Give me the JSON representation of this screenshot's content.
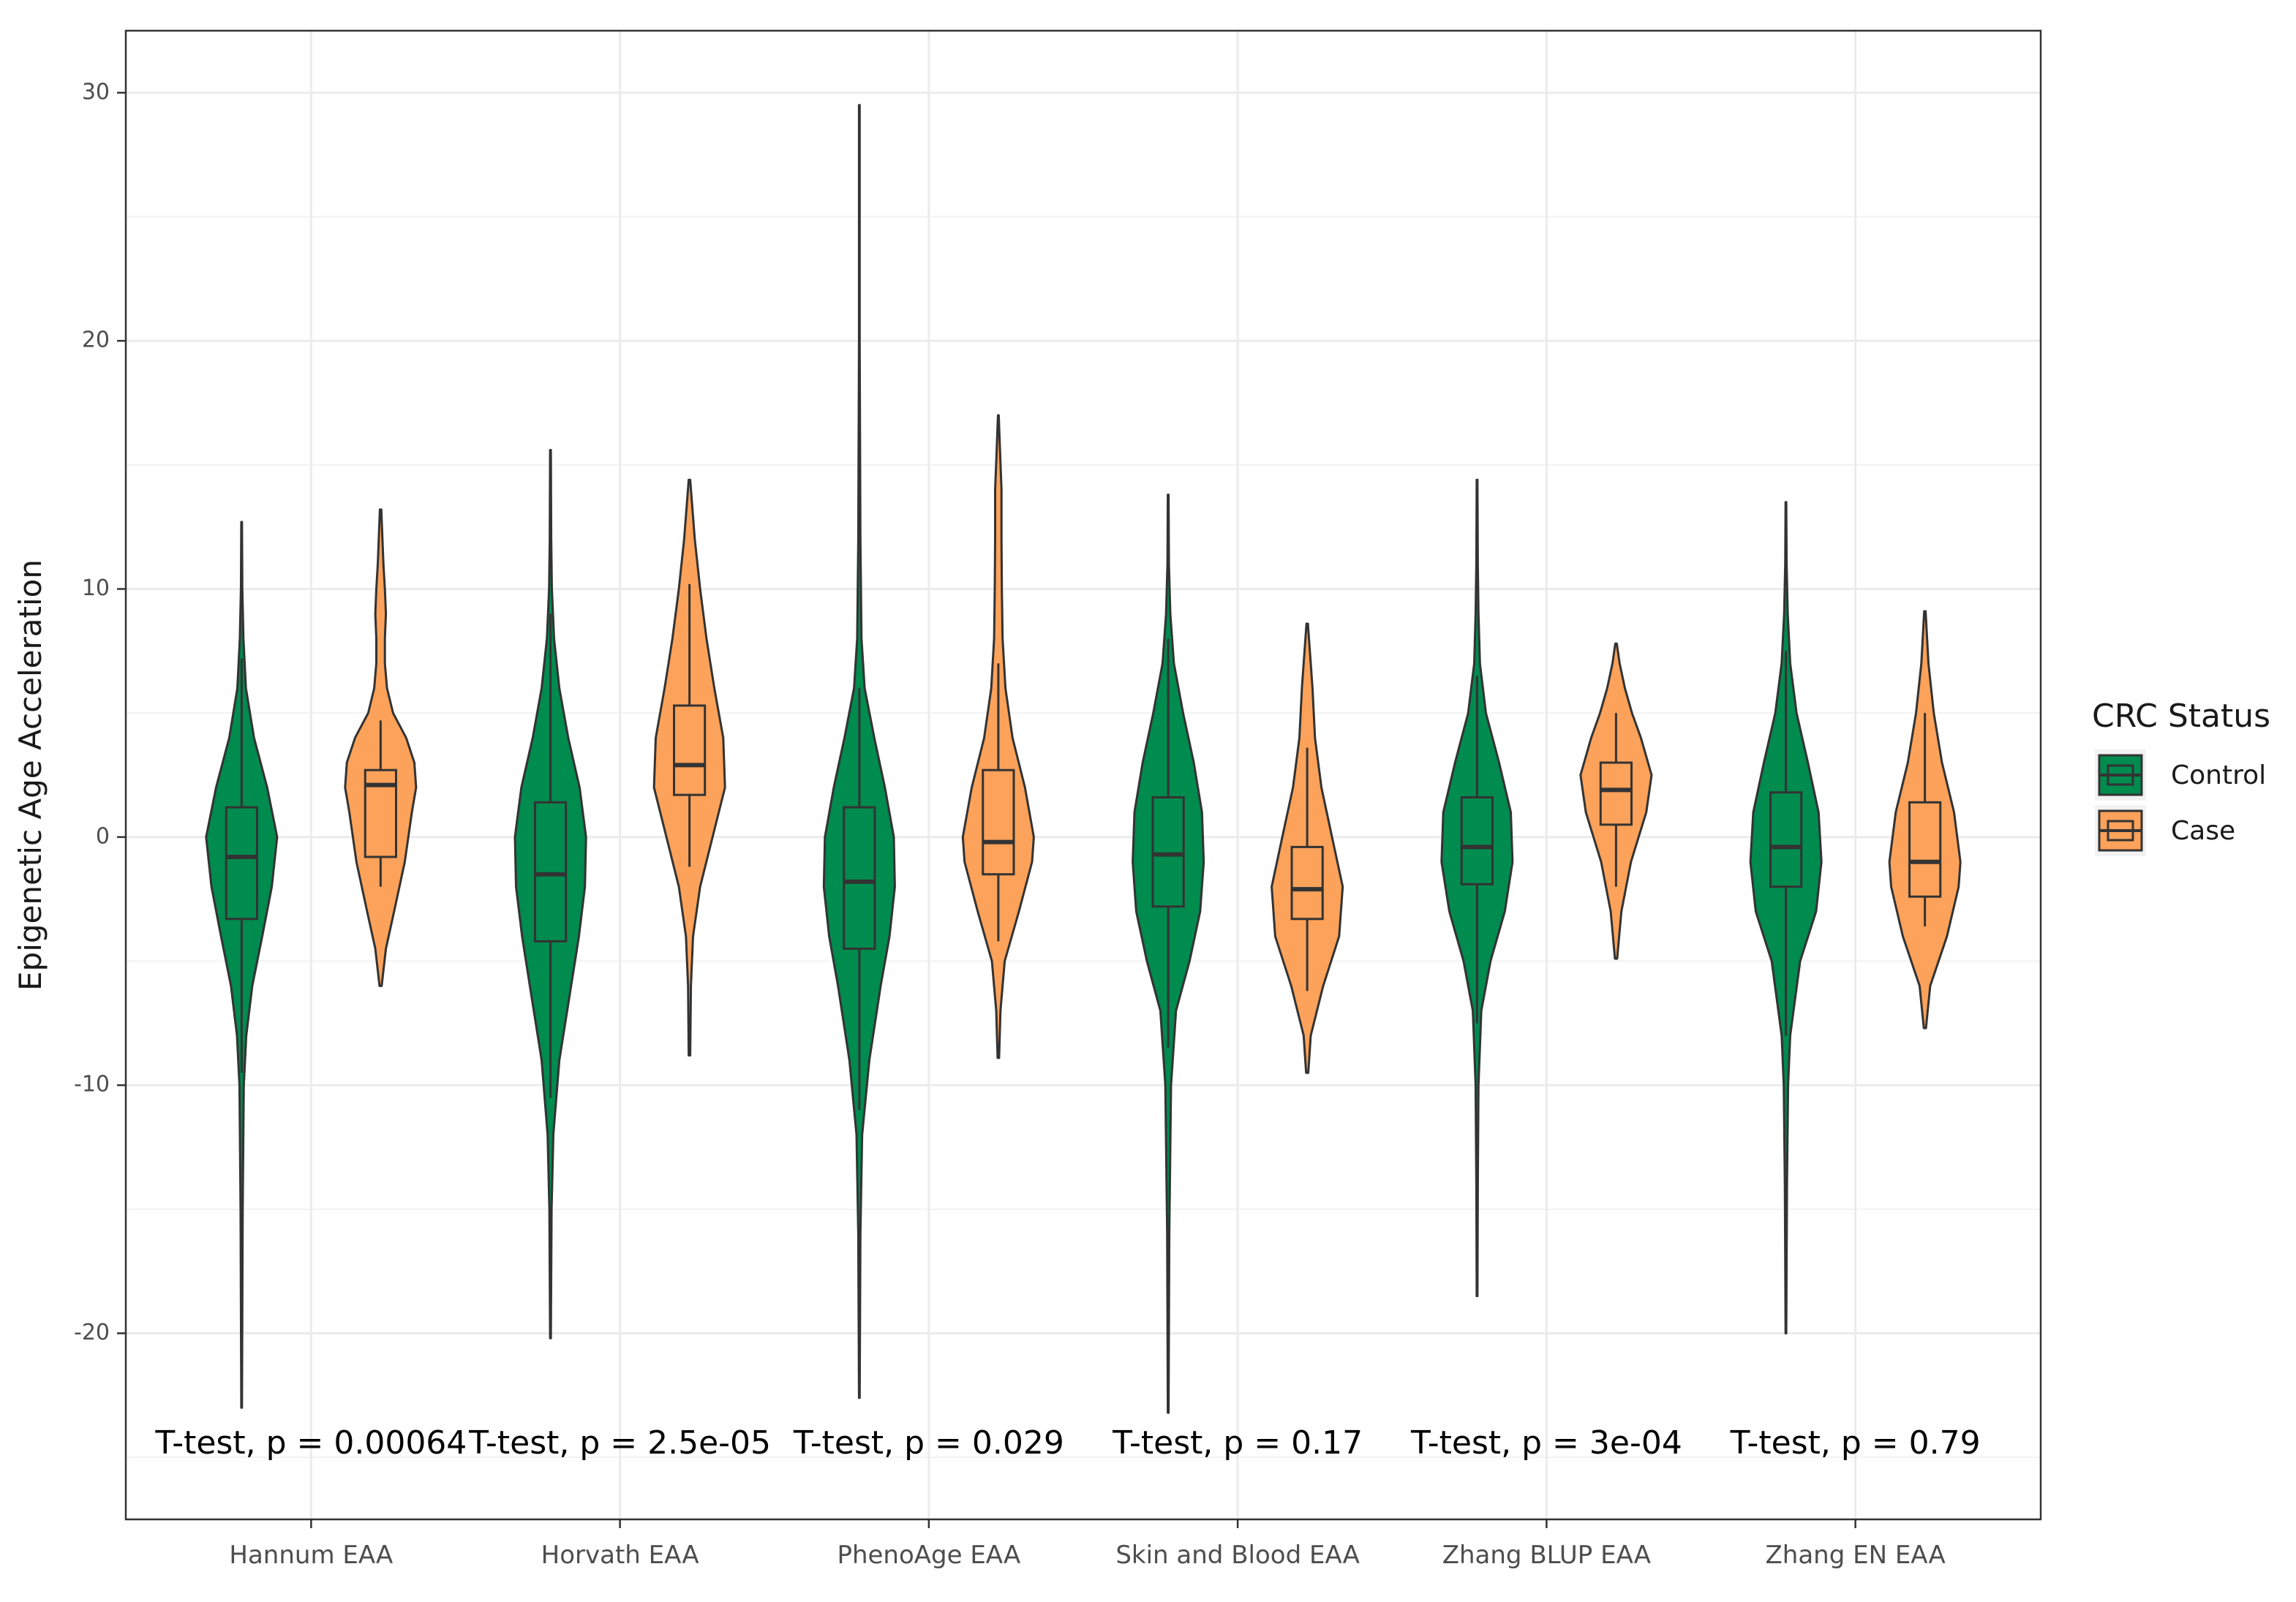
{
  "chart_data": {
    "type": "violin",
    "ylabel": "Epigenetic Age Acceleration",
    "xlabel": "",
    "ylim": [
      -27.5,
      32.5
    ],
    "yticks": [
      -20,
      -10,
      0,
      10,
      20,
      30
    ],
    "grid": true,
    "categories": [
      "Hannum EAA",
      "Horvath EAA",
      "PhenoAge EAA",
      "Skin and Blood EAA",
      "Zhang BLUP EAA",
      "Zhang EN EAA"
    ],
    "annotations": [
      "T-test, p = 0.00064",
      "T-test, p = 2.5e-05",
      "T-test, p = 0.029",
      "T-test, p = 0.17",
      "T-test, p = 3e-04",
      "T-test, p = 0.79"
    ],
    "annotation_y": -24.5,
    "legend": {
      "title": "CRC Status",
      "position": "right",
      "entries": [
        {
          "label": "Control",
          "color": "#008b4f"
        },
        {
          "label": "Case",
          "color": "#fda25a"
        }
      ]
    },
    "series": [
      {
        "name": "Control",
        "color": "#008b4f",
        "groups": [
          {
            "min": -23.0,
            "q1": -3.3,
            "median": -0.8,
            "q3": 1.2,
            "max": 12.7,
            "wlo": -9.5,
            "whi": 7.2,
            "profile": [
              [
                -23.0,
                0.01
              ],
              [
                -15,
                0.03
              ],
              [
                -10,
                0.06
              ],
              [
                -8,
                0.13
              ],
              [
                -6,
                0.3
              ],
              [
                -4,
                0.58
              ],
              [
                -2,
                0.85
              ],
              [
                0,
                1.0
              ],
              [
                2,
                0.72
              ],
              [
                4,
                0.35
              ],
              [
                6,
                0.12
              ],
              [
                8,
                0.05
              ],
              [
                10,
                0.02
              ],
              [
                12.7,
                0.01
              ]
            ]
          },
          {
            "min": -20.2,
            "q1": -4.2,
            "median": -1.5,
            "q3": 1.4,
            "max": 15.6,
            "wlo": -10.5,
            "whi": 9.0,
            "profile": [
              [
                -20.2,
                0.01
              ],
              [
                -15,
                0.03
              ],
              [
                -12,
                0.08
              ],
              [
                -9,
                0.25
              ],
              [
                -6,
                0.58
              ],
              [
                -4,
                0.8
              ],
              [
                -2,
                0.97
              ],
              [
                0,
                1.0
              ],
              [
                2,
                0.82
              ],
              [
                4,
                0.5
              ],
              [
                6,
                0.25
              ],
              [
                8,
                0.1
              ],
              [
                10,
                0.04
              ],
              [
                12,
                0.02
              ],
              [
                15.6,
                0.01
              ]
            ]
          },
          {
            "min": -22.6,
            "q1": -4.5,
            "median": -1.8,
            "q3": 1.2,
            "max": 29.5,
            "wlo": -11.0,
            "whi": 6.0,
            "profile": [
              [
                -22.6,
                0.01
              ],
              [
                -16,
                0.03
              ],
              [
                -12,
                0.08
              ],
              [
                -9,
                0.28
              ],
              [
                -6,
                0.6
              ],
              [
                -4,
                0.85
              ],
              [
                -2,
                1.0
              ],
              [
                0,
                0.97
              ],
              [
                2,
                0.72
              ],
              [
                4,
                0.42
              ],
              [
                6,
                0.15
              ],
              [
                8,
                0.06
              ],
              [
                12,
                0.03
              ],
              [
                16,
                0.02
              ],
              [
                20,
                0.01
              ],
              [
                29.5,
                0.01
              ]
            ]
          },
          {
            "min": -23.2,
            "q1": -2.8,
            "median": -0.7,
            "q3": 1.6,
            "max": 13.8,
            "wlo": -8.5,
            "whi": 8.0,
            "profile": [
              [
                -23.2,
                0.01
              ],
              [
                -16,
                0.03
              ],
              [
                -10,
                0.08
              ],
              [
                -7,
                0.22
              ],
              [
                -5,
                0.6
              ],
              [
                -3,
                0.9
              ],
              [
                -1,
                1.0
              ],
              [
                1,
                0.95
              ],
              [
                3,
                0.72
              ],
              [
                5,
                0.42
              ],
              [
                7,
                0.16
              ],
              [
                9,
                0.06
              ],
              [
                11,
                0.02
              ],
              [
                13.8,
                0.01
              ]
            ]
          },
          {
            "min": -18.5,
            "q1": -1.9,
            "median": -0.4,
            "q3": 1.6,
            "max": 14.4,
            "wlo": -7.5,
            "whi": 6.5,
            "profile": [
              [
                -18.5,
                0.01
              ],
              [
                -14,
                0.02
              ],
              [
                -10,
                0.04
              ],
              [
                -7,
                0.12
              ],
              [
                -5,
                0.38
              ],
              [
                -3,
                0.78
              ],
              [
                -1,
                1.0
              ],
              [
                1,
                0.95
              ],
              [
                3,
                0.62
              ],
              [
                5,
                0.25
              ],
              [
                7,
                0.08
              ],
              [
                9,
                0.04
              ],
              [
                11,
                0.02
              ],
              [
                14.4,
                0.01
              ]
            ]
          },
          {
            "min": -20.0,
            "q1": -2.0,
            "median": -0.4,
            "q3": 1.8,
            "max": 13.5,
            "wlo": -8.0,
            "whi": 7.5,
            "profile": [
              [
                -20.0,
                0.01
              ],
              [
                -14,
                0.03
              ],
              [
                -10,
                0.06
              ],
              [
                -8,
                0.12
              ],
              [
                -5,
                0.4
              ],
              [
                -3,
                0.85
              ],
              [
                -1,
                1.0
              ],
              [
                1,
                0.92
              ],
              [
                3,
                0.62
              ],
              [
                5,
                0.3
              ],
              [
                7,
                0.12
              ],
              [
                9,
                0.05
              ],
              [
                11,
                0.02
              ],
              [
                13.5,
                0.01
              ]
            ]
          }
        ]
      },
      {
        "name": "Case",
        "color": "#fda25a",
        "groups": [
          {
            "min": -6.0,
            "q1": -0.8,
            "median": 2.1,
            "q3": 2.7,
            "max": 13.2,
            "wlo": -2.0,
            "whi": 4.7,
            "profile": [
              [
                -6.0,
                0.03
              ],
              [
                -4.5,
                0.15
              ],
              [
                -3,
                0.38
              ],
              [
                -1,
                0.68
              ],
              [
                1,
                0.88
              ],
              [
                2,
                1.0
              ],
              [
                3,
                0.95
              ],
              [
                4,
                0.72
              ],
              [
                5,
                0.35
              ],
              [
                6,
                0.18
              ],
              [
                7,
                0.12
              ],
              [
                8,
                0.12
              ],
              [
                9,
                0.15
              ],
              [
                10,
                0.12
              ],
              [
                11,
                0.08
              ],
              [
                13.2,
                0.02
              ]
            ]
          },
          {
            "min": -8.8,
            "q1": 1.7,
            "median": 2.9,
            "q3": 5.3,
            "max": 14.4,
            "wlo": -1.2,
            "whi": 10.2,
            "profile": [
              [
                -8.8,
                0.02
              ],
              [
                -6,
                0.04
              ],
              [
                -4,
                0.1
              ],
              [
                -2,
                0.3
              ],
              [
                0,
                0.65
              ],
              [
                2,
                1.0
              ],
              [
                4,
                0.95
              ],
              [
                6,
                0.7
              ],
              [
                8,
                0.48
              ],
              [
                10,
                0.3
              ],
              [
                12,
                0.15
              ],
              [
                14.4,
                0.02
              ]
            ]
          },
          {
            "min": -8.9,
            "q1": -1.5,
            "median": -0.2,
            "q3": 2.7,
            "max": 17.0,
            "wlo": -4.2,
            "whi": 7.0,
            "profile": [
              [
                -8.9,
                0.02
              ],
              [
                -7,
                0.06
              ],
              [
                -5,
                0.18
              ],
              [
                -3,
                0.58
              ],
              [
                -1,
                0.95
              ],
              [
                0,
                1.0
              ],
              [
                2,
                0.75
              ],
              [
                4,
                0.4
              ],
              [
                6,
                0.2
              ],
              [
                8,
                0.12
              ],
              [
                10,
                0.1
              ],
              [
                12,
                0.09
              ],
              [
                14,
                0.09
              ],
              [
                15.5,
                0.05
              ],
              [
                17,
                0.01
              ]
            ]
          },
          {
            "min": -9.5,
            "q1": -3.3,
            "median": -2.1,
            "q3": -0.4,
            "max": 8.6,
            "wlo": -6.2,
            "whi": 3.6,
            "profile": [
              [
                -9.5,
                0.03
              ],
              [
                -8,
                0.1
              ],
              [
                -6,
                0.45
              ],
              [
                -4,
                0.9
              ],
              [
                -2,
                1.0
              ],
              [
                0,
                0.7
              ],
              [
                2,
                0.4
              ],
              [
                4,
                0.22
              ],
              [
                6,
                0.15
              ],
              [
                7,
                0.1
              ],
              [
                8.6,
                0.02
              ]
            ]
          },
          {
            "min": -4.9,
            "q1": 0.5,
            "median": 1.9,
            "q3": 3.0,
            "max": 7.8,
            "wlo": -2.0,
            "whi": 5.0,
            "profile": [
              [
                -4.9,
                0.03
              ],
              [
                -3,
                0.15
              ],
              [
                -1,
                0.42
              ],
              [
                1,
                0.85
              ],
              [
                2.5,
                1.0
              ],
              [
                4,
                0.7
              ],
              [
                5,
                0.45
              ],
              [
                6,
                0.25
              ],
              [
                7,
                0.1
              ],
              [
                7.8,
                0.02
              ]
            ]
          },
          {
            "min": -7.7,
            "q1": -2.4,
            "median": -1.0,
            "q3": 1.4,
            "max": 9.1,
            "wlo": -3.6,
            "whi": 5.0,
            "profile": [
              [
                -7.7,
                0.03
              ],
              [
                -6,
                0.15
              ],
              [
                -4,
                0.62
              ],
              [
                -2,
                0.95
              ],
              [
                -1,
                1.0
              ],
              [
                1,
                0.82
              ],
              [
                3,
                0.48
              ],
              [
                5,
                0.25
              ],
              [
                7,
                0.1
              ],
              [
                9.1,
                0.02
              ]
            ]
          }
        ]
      }
    ]
  }
}
